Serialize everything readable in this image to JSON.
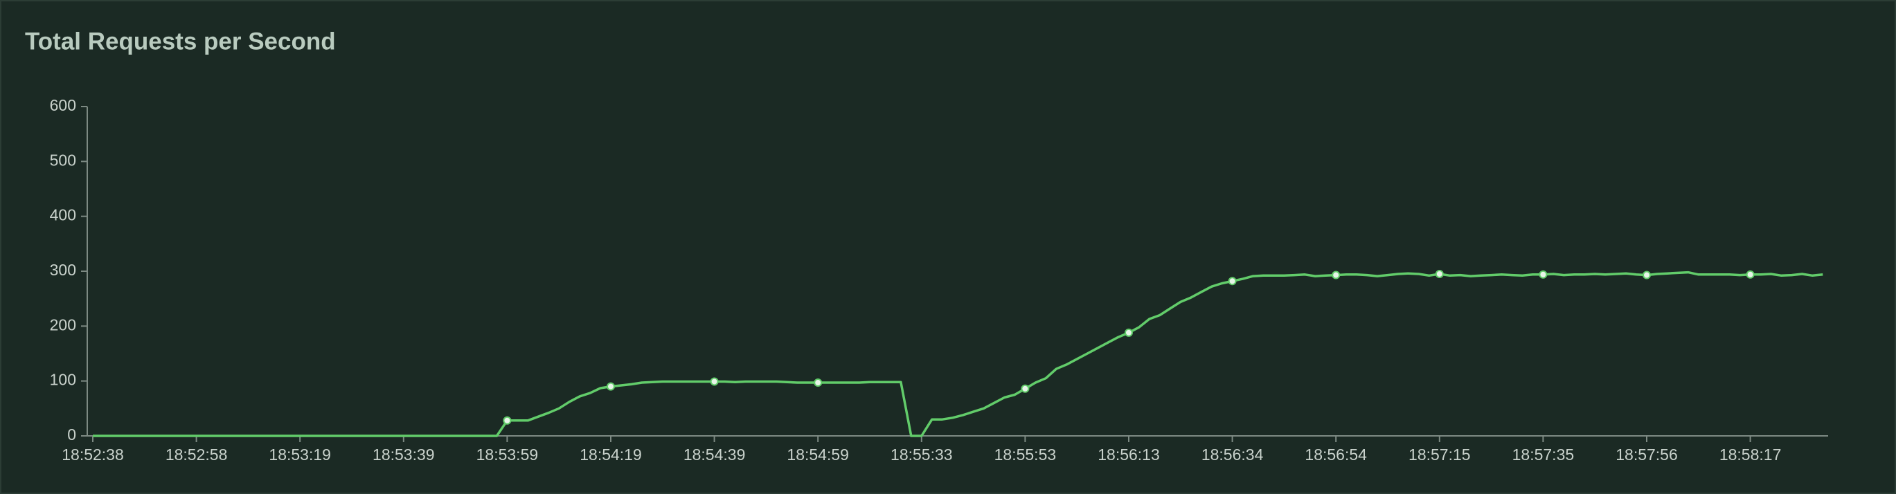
{
  "chart_data": {
    "type": "line",
    "title": "Total Requests per Second",
    "categories": [
      "18:52:38",
      null,
      null,
      null,
      null,
      null,
      null,
      null,
      null,
      null,
      "18:52:58",
      null,
      null,
      null,
      null,
      null,
      null,
      null,
      null,
      null,
      "18:53:19",
      null,
      null,
      null,
      null,
      null,
      null,
      null,
      null,
      null,
      "18:53:39",
      null,
      null,
      null,
      null,
      null,
      null,
      null,
      null,
      null,
      "18:53:59",
      null,
      null,
      null,
      null,
      null,
      null,
      null,
      null,
      null,
      "18:54:19",
      null,
      null,
      null,
      null,
      null,
      null,
      null,
      null,
      null,
      "18:54:39",
      null,
      null,
      null,
      null,
      null,
      null,
      null,
      null,
      null,
      "18:54:59",
      null,
      null,
      null,
      null,
      null,
      null,
      null,
      null,
      null,
      "18:55:33",
      null,
      null,
      null,
      null,
      null,
      null,
      null,
      null,
      null,
      "18:55:53",
      null,
      null,
      null,
      null,
      null,
      null,
      null,
      null,
      null,
      "18:56:13",
      null,
      null,
      null,
      null,
      null,
      null,
      null,
      null,
      null,
      "18:56:34",
      null,
      null,
      null,
      null,
      null,
      null,
      null,
      null,
      null,
      "18:56:54",
      null,
      null,
      null,
      null,
      null,
      null,
      null,
      null,
      null,
      "18:57:15",
      null,
      null,
      null,
      null,
      null,
      null,
      null,
      null,
      null,
      "18:57:35",
      null,
      null,
      null,
      null,
      null,
      null,
      null,
      null,
      null,
      "18:57:56",
      null,
      null,
      null,
      null,
      null,
      null,
      null,
      null,
      null,
      "18:58:17",
      null,
      null,
      null,
      null,
      null,
      null,
      null
    ],
    "values": [
      0,
      0,
      0,
      0,
      0,
      0,
      0,
      0,
      0,
      0,
      0,
      0,
      0,
      0,
      0,
      0,
      0,
      0,
      0,
      0,
      0,
      0,
      0,
      0,
      0,
      0,
      0,
      0,
      0,
      0,
      0,
      0,
      0,
      0,
      0,
      0,
      0,
      0,
      0,
      0,
      28,
      28,
      28,
      35,
      42,
      50,
      62,
      72,
      78,
      87,
      90,
      92,
      94,
      97,
      98,
      99,
      99,
      99,
      99,
      99,
      99,
      99,
      98,
      99,
      99,
      99,
      99,
      98,
      97,
      97,
      97,
      97,
      97,
      97,
      97,
      98,
      98,
      98,
      98,
      0,
      0,
      30,
      30,
      33,
      38,
      44,
      50,
      60,
      70,
      75,
      86,
      97,
      105,
      122,
      130,
      140,
      150,
      160,
      170,
      180,
      188,
      198,
      213,
      220,
      232,
      244,
      252,
      262,
      272,
      278,
      282,
      286,
      291,
      292,
      292,
      292,
      293,
      294,
      291,
      292,
      293,
      294,
      294,
      293,
      291,
      293,
      295,
      296,
      295,
      292,
      295,
      292,
      293,
      291,
      292,
      293,
      294,
      293,
      292,
      294,
      294,
      295,
      293,
      294,
      294,
      295,
      294,
      295,
      296,
      294,
      293,
      295,
      296,
      297,
      298,
      294,
      294,
      294,
      294,
      293,
      294,
      294,
      295,
      292,
      293,
      295,
      292,
      294
    ],
    "color": "#62cc6a",
    "ylim": [
      0,
      600
    ],
    "yticks": [
      0,
      100,
      200,
      300,
      400,
      500,
      600
    ]
  }
}
